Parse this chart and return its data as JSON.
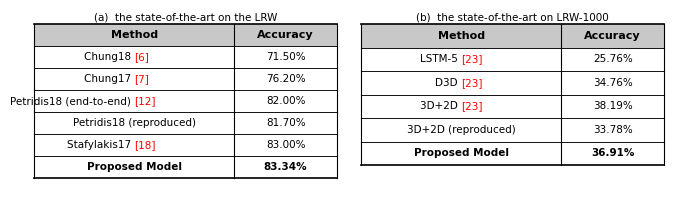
{
  "table_a_title": "(a)  the state-of-the-art on the LRW",
  "table_b_title": "(b)  the state-of-the-art on LRW-1000",
  "table_a_headers": [
    "Method",
    "Accuracy"
  ],
  "table_b_headers": [
    "Method",
    "Accuracy"
  ],
  "table_a_rows": [
    {
      "method": "Chung18 ",
      "ref": "[6]",
      "accuracy": "71.50%",
      "bold": false
    },
    {
      "method": "Chung17 ",
      "ref": "[7]",
      "accuracy": "76.20%",
      "bold": false
    },
    {
      "method": "Petridis18 (end-to-end) ",
      "ref": "[12]",
      "accuracy": "82.00%",
      "bold": false
    },
    {
      "method": "Petridis18 (reproduced)",
      "ref": "",
      "accuracy": "81.70%",
      "bold": false
    },
    {
      "method": "Stafylakis17 ",
      "ref": "[18]",
      "accuracy": "83.00%",
      "bold": false
    },
    {
      "method": "Proposed Model",
      "ref": "",
      "accuracy": "83.34%",
      "bold": true
    }
  ],
  "table_b_rows": [
    {
      "method": "LSTM-5 ",
      "ref": "[23]",
      "accuracy": "25.76%",
      "bold": false
    },
    {
      "method": "D3D ",
      "ref": "[23]",
      "accuracy": "34.76%",
      "bold": false
    },
    {
      "method": "3D+2D ",
      "ref": "[23]",
      "accuracy": "38.19%",
      "bold": false
    },
    {
      "method": "3D+2D (reproduced)",
      "ref": "",
      "accuracy": "33.78%",
      "bold": false
    },
    {
      "method": "Proposed Model",
      "ref": "",
      "accuracy": "36.91%",
      "bold": true
    }
  ],
  "header_bg": "#c8c8c8",
  "row_bg": "#ffffff",
  "text_color": "#000000",
  "ref_color": "#ff0000",
  "border_color": "#000000",
  "font_size": 7.5,
  "header_font_size": 8.0,
  "background_color": "#ffffff",
  "title_fontsize": 7.5
}
